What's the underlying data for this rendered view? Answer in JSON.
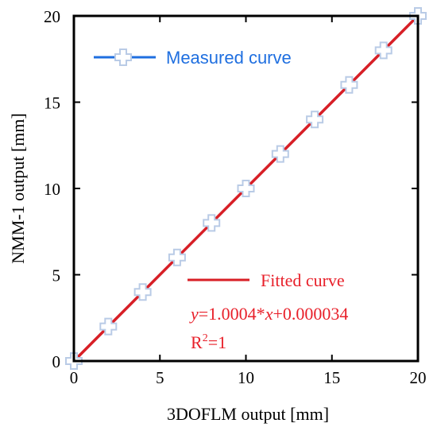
{
  "chart_data": {
    "type": "line",
    "xlabel": "3DOFLM output   [mm]",
    "ylabel": "NMM-1 output   [mm]",
    "xlim": [
      0,
      20
    ],
    "ylim": [
      0,
      20
    ],
    "xticks": [
      0,
      5,
      10,
      15,
      20
    ],
    "yticks": [
      0,
      5,
      10,
      15,
      20
    ],
    "grid": false,
    "series": [
      {
        "name": "Measured curve",
        "style": "line-with-cross-markers",
        "color": "#1f6fe0",
        "marker_fill": "#ffffff",
        "marker_edge": "#b9cbe6",
        "x": [
          0,
          2,
          4,
          6,
          8,
          10,
          12,
          14,
          16,
          18,
          20
        ],
        "y": [
          0,
          2,
          4,
          6,
          8,
          10,
          12,
          14,
          16,
          18,
          20
        ]
      },
      {
        "name": "Fitted curve",
        "style": "line",
        "color": "#d81f26",
        "x": [
          0,
          20
        ],
        "y": [
          3.4e-05,
          20.008034
        ]
      }
    ],
    "legend_measured": "Measured curve",
    "legend_fitted": "Fitted curve",
    "equation": {
      "y": "y",
      "eq_mid": "=1.0004*",
      "x": "x",
      "eq_tail": "+0.000034"
    },
    "r2": {
      "base": "R",
      "sup": "2",
      "tail": "=1"
    }
  }
}
